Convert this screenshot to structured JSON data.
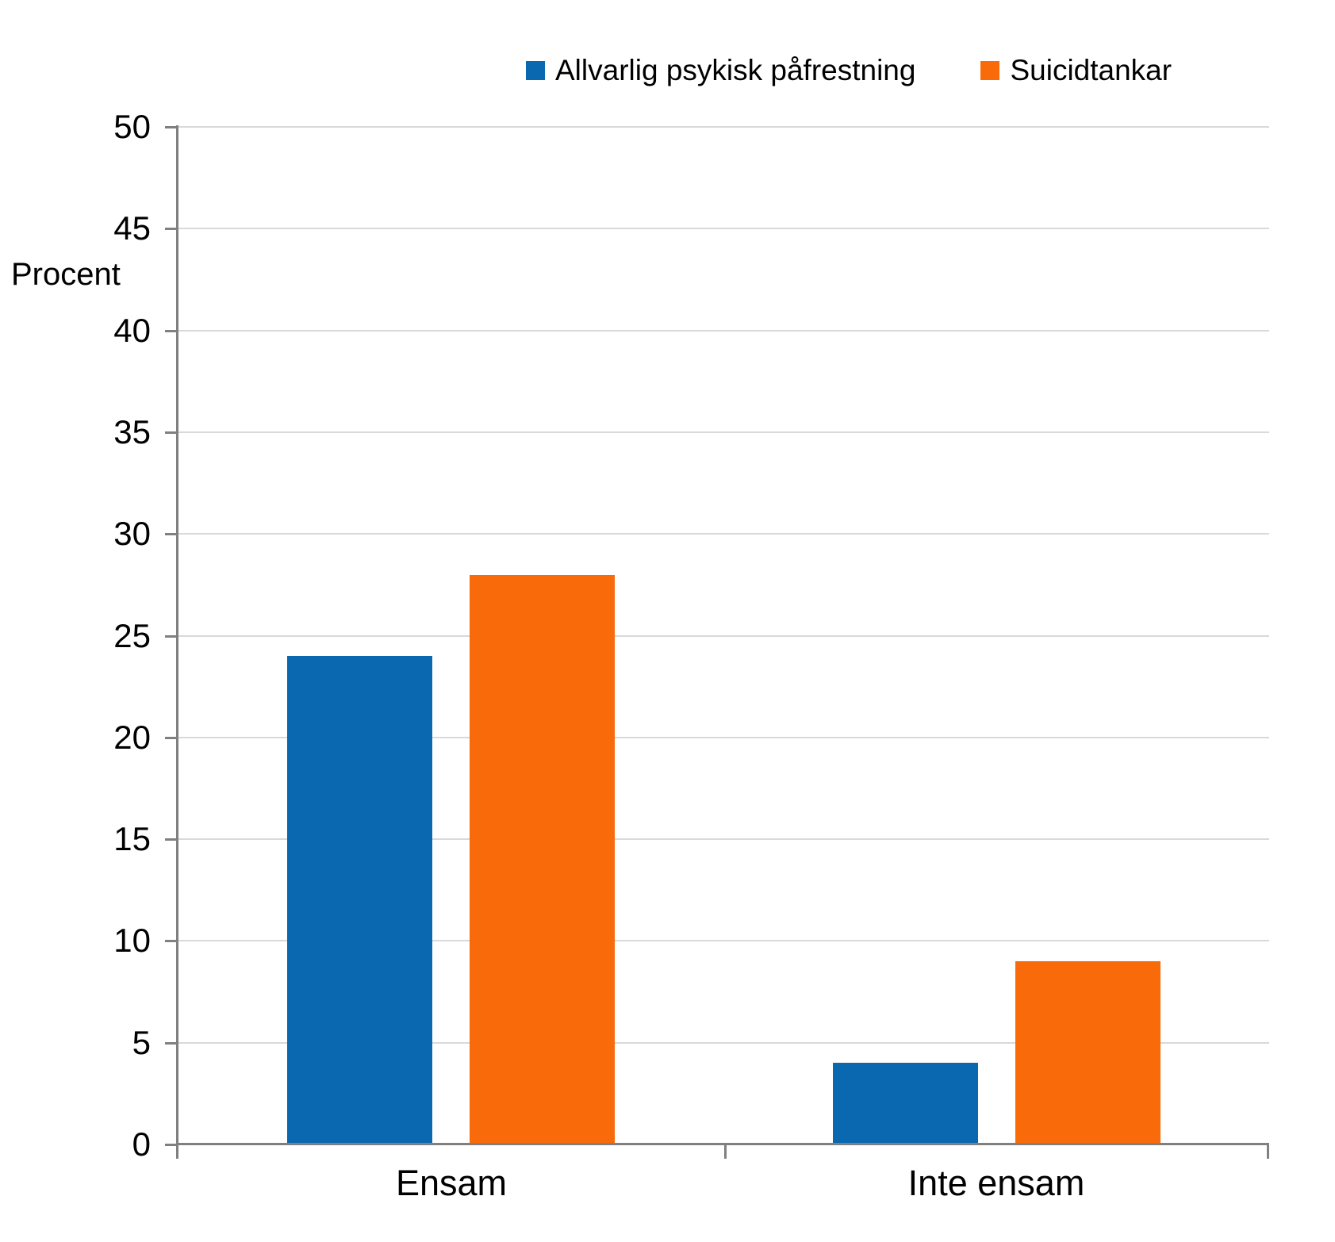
{
  "chart_data": {
    "type": "bar",
    "categories": [
      "Ensam",
      "Inte ensam"
    ],
    "series": [
      {
        "name": "Allvarlig psykisk påfrestning",
        "color": "#0A68B0",
        "values": [
          24,
          4
        ]
      },
      {
        "name": "Suicidtankar",
        "color": "#F86A0A",
        "values": [
          28,
          9
        ]
      }
    ],
    "title": "",
    "xlabel": "",
    "ylabel": "Procent",
    "ylim": [
      0,
      50
    ],
    "ytick_step": 5,
    "yticks": [
      0,
      5,
      10,
      15,
      20,
      25,
      30,
      35,
      40,
      45,
      50
    ],
    "grid": true,
    "legend_position": "top"
  },
  "colors": {
    "background": "#FFFFFF",
    "axis": "#808080",
    "gridline": "#D9D9D9",
    "text": "#000000"
  }
}
